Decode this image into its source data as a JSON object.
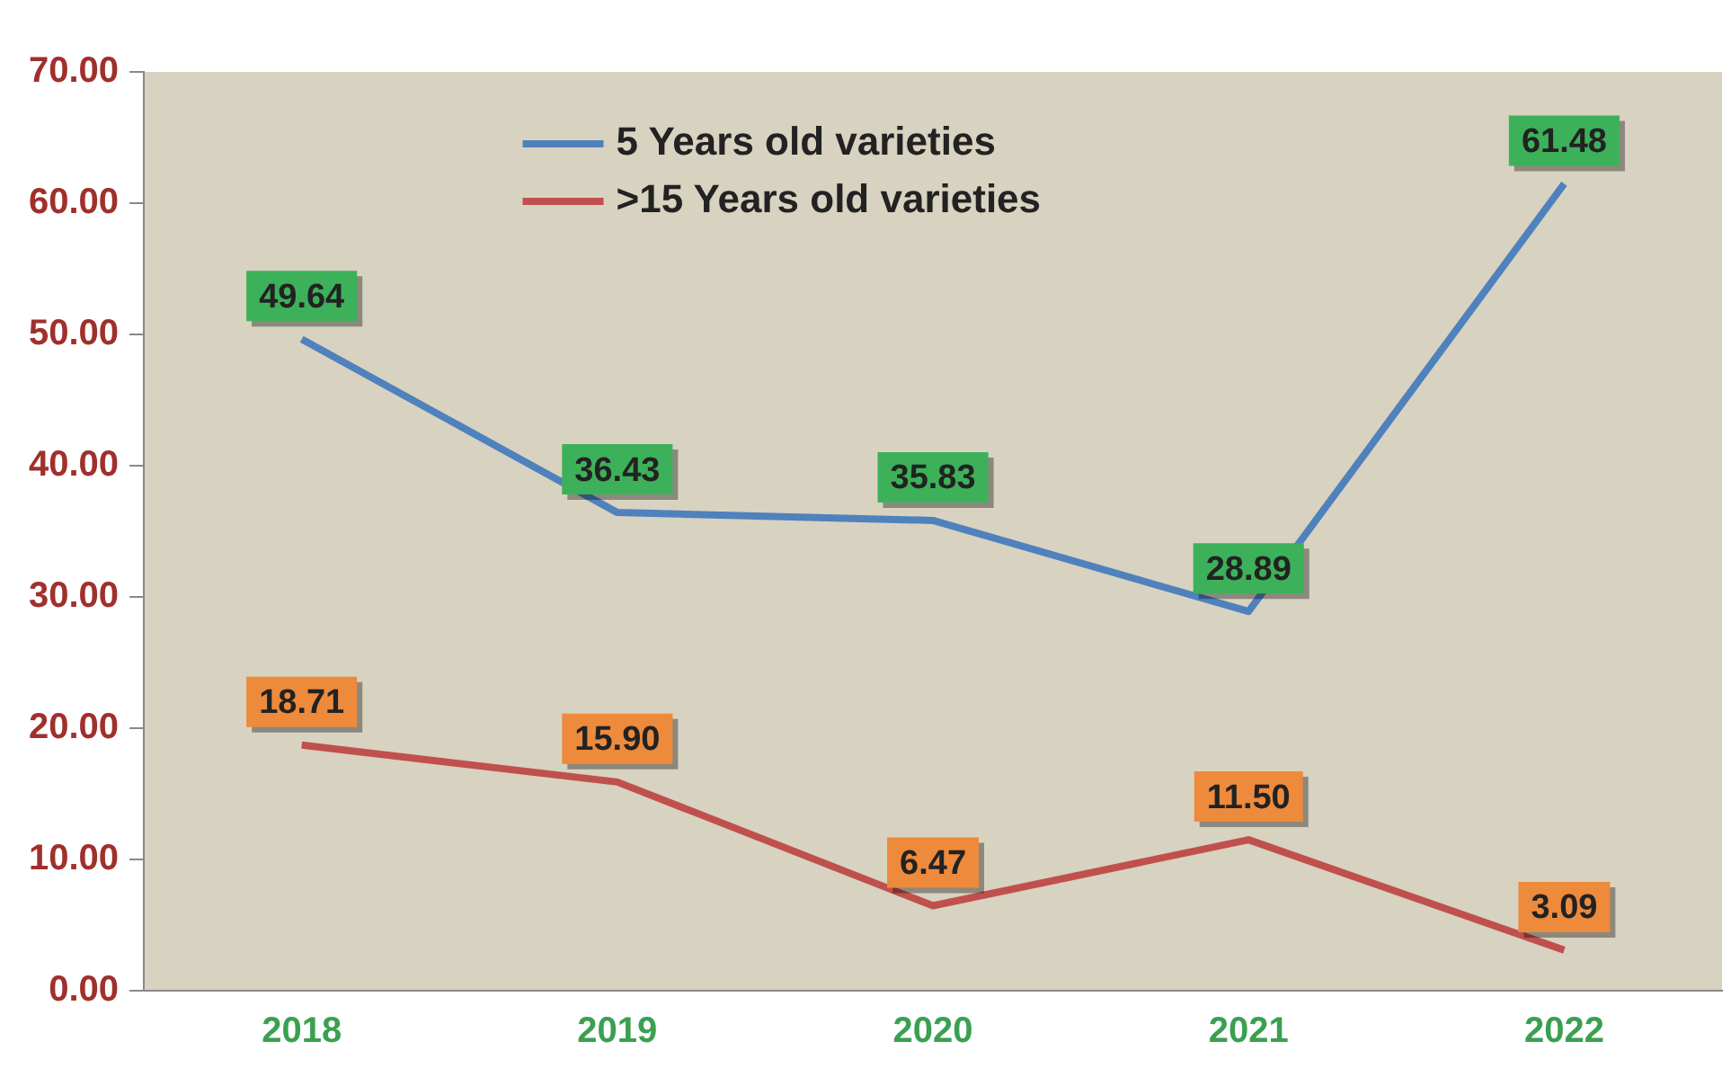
{
  "chart_data": {
    "type": "line",
    "categories": [
      "2018",
      "2019",
      "2020",
      "2021",
      "2022"
    ],
    "series": [
      {
        "name": "5 Years old varieties",
        "color": "#4f81bd",
        "values": [
          49.64,
          36.43,
          35.83,
          28.89,
          61.48
        ],
        "value_labels": [
          "49.64",
          "36.43",
          "35.83",
          "28.89",
          "61.48"
        ]
      },
      {
        "name": ">15 Years old varieties",
        "color": "#c0504d",
        "values": [
          18.71,
          15.9,
          6.47,
          11.5,
          3.09
        ],
        "value_labels": [
          "18.71",
          "15.90",
          "6.47",
          "11.50",
          "3.09"
        ]
      }
    ],
    "ylim": [
      0,
      70
    ],
    "yticks": [
      {
        "value": 0,
        "label": "0.00"
      },
      {
        "value": 10,
        "label": "10.00"
      },
      {
        "value": 20,
        "label": "20.00"
      },
      {
        "value": 30,
        "label": "30.00"
      },
      {
        "value": 40,
        "label": "40.00"
      },
      {
        "value": 50,
        "label": "50.00"
      },
      {
        "value": 60,
        "label": "60.00"
      },
      {
        "value": 70,
        "label": "70.00"
      }
    ],
    "grid": false,
    "legend": "top",
    "marker": "none",
    "line_style": "solid"
  }
}
